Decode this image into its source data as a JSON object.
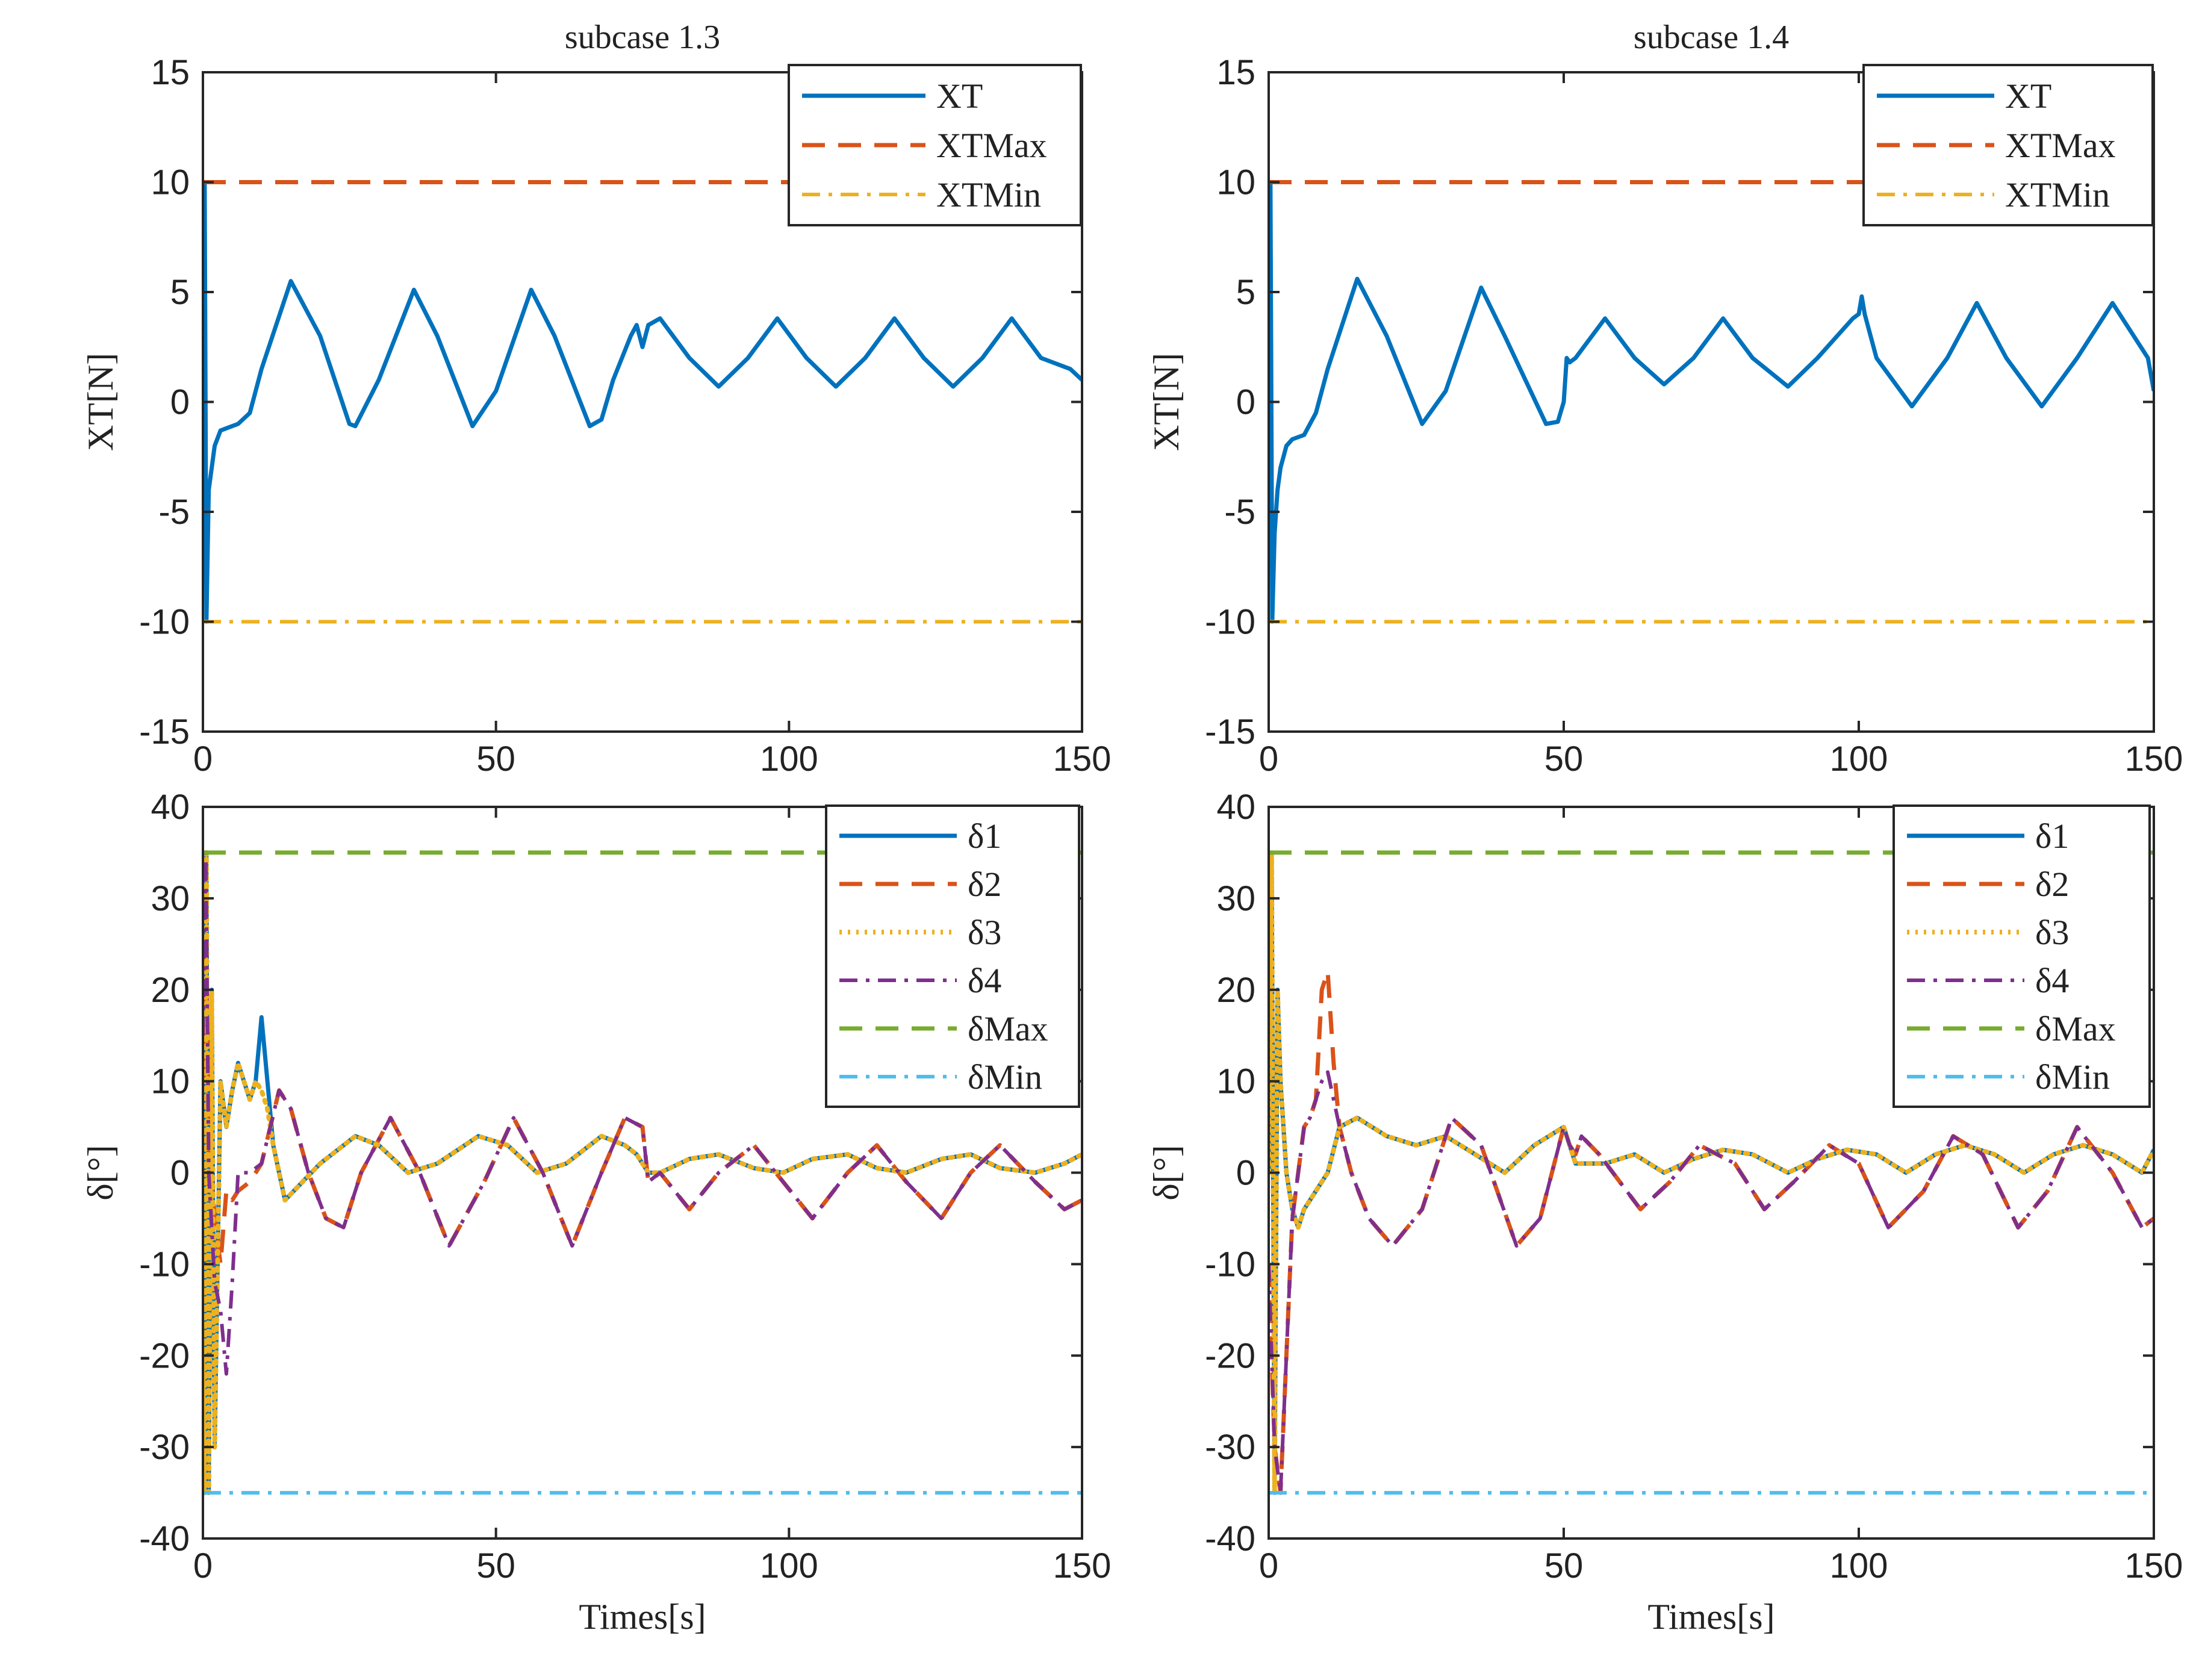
{
  "chart_data": [
    {
      "type": "line",
      "title": "subcase 1.3",
      "xlabel": "",
      "ylabel": "XT[N]",
      "xlim": [
        0,
        150
      ],
      "ylim": [
        -15,
        15
      ],
      "xticks": [
        "0",
        "50",
        "100",
        "150"
      ],
      "yticks": [
        "15",
        "10",
        "5",
        "0",
        "-5",
        "-10",
        "-15"
      ],
      "legend_position": "top-right",
      "series": [
        {
          "name": "XT",
          "color": "#0072BD",
          "dash": "solid",
          "x": [
            0,
            0.3,
            0.6,
            1,
            1.5,
            2,
            3,
            4,
            6,
            8,
            10,
            15,
            20,
            25,
            26,
            30,
            36,
            40,
            46,
            50,
            56,
            60,
            66,
            68,
            70,
            73,
            74,
            75,
            76,
            78,
            83,
            88,
            93,
            98,
            103,
            108,
            113,
            118,
            123,
            128,
            133,
            138,
            143,
            148,
            150
          ],
          "y": [
            0,
            10,
            -10,
            -4,
            -3,
            -2,
            -1.3,
            -1.2,
            -1,
            -0.5,
            1.5,
            5.5,
            3,
            -1,
            -1.1,
            1,
            5.1,
            3,
            -1.1,
            0.5,
            5.1,
            3,
            -1.1,
            -0.8,
            1,
            3,
            3.5,
            2.5,
            3.5,
            3.8,
            2,
            0.7,
            2,
            3.8,
            2,
            0.7,
            2,
            3.8,
            2,
            0.7,
            2,
            3.8,
            2,
            1.5,
            1
          ]
        },
        {
          "name": "XTMax",
          "color": "#D95319",
          "dash": "dashed",
          "x": [
            0,
            150
          ],
          "y": [
            10,
            10
          ]
        },
        {
          "name": "XTMin",
          "color": "#EDB120",
          "dash": "dashdot",
          "x": [
            0,
            150
          ],
          "y": [
            -10,
            -10
          ]
        }
      ]
    },
    {
      "type": "line",
      "title": "subcase 1.4",
      "xlabel": "",
      "ylabel": "XT[N]",
      "xlim": [
        0,
        150
      ],
      "ylim": [
        -15,
        15
      ],
      "xticks": [
        "0",
        "50",
        "100",
        "150"
      ],
      "yticks": [
        "15",
        "10",
        "5",
        "0",
        "-5",
        "-10",
        "-15"
      ],
      "legend_position": "top-right",
      "series": [
        {
          "name": "XT",
          "color": "#0072BD",
          "dash": "solid",
          "x": [
            0,
            0.3,
            0.6,
            1,
            1.5,
            2,
            3,
            4,
            6,
            8,
            10,
            15,
            20,
            26,
            30,
            36,
            40,
            47,
            49,
            50,
            50.5,
            51,
            52,
            57,
            62,
            67,
            72,
            77,
            82,
            88,
            93,
            99,
            100,
            100.5,
            101,
            103,
            109,
            115,
            120,
            125,
            131,
            137,
            143,
            149,
            150
          ],
          "y": [
            0,
            10,
            -10,
            -6,
            -4,
            -3,
            -2,
            -1.7,
            -1.5,
            -0.5,
            1.5,
            5.6,
            3,
            -1,
            0.5,
            5.2,
            3,
            -1,
            -0.9,
            0,
            2,
            1.8,
            2,
            3.8,
            2,
            0.8,
            2,
            3.8,
            2,
            0.7,
            2,
            3.8,
            4,
            4.8,
            4,
            2,
            -0.2,
            2,
            4.5,
            2,
            -0.2,
            2,
            4.5,
            2,
            0.5
          ]
        },
        {
          "name": "XTMax",
          "color": "#D95319",
          "dash": "dashed",
          "x": [
            0,
            150
          ],
          "y": [
            10,
            10
          ]
        },
        {
          "name": "XTMin",
          "color": "#EDB120",
          "dash": "dashdot",
          "x": [
            0,
            150
          ],
          "y": [
            -10,
            -10
          ]
        }
      ]
    },
    {
      "type": "line",
      "title": "",
      "xlabel": "Times[s]",
      "ylabel": "δ[°]",
      "xlim": [
        0,
        150
      ],
      "ylim": [
        -40,
        40
      ],
      "xticks": [
        "0",
        "50",
        "100",
        "150"
      ],
      "yticks": [
        "40",
        "30",
        "20",
        "10",
        "0",
        "-10",
        "-20",
        "-30",
        "-40"
      ],
      "legend_position": "top-right",
      "series": [
        {
          "name": "δ1",
          "color": "#0072BD",
          "dash": "solid",
          "x": [
            0,
            0.3,
            0.6,
            1,
            1.5,
            2,
            3,
            4,
            5,
            6,
            7,
            8,
            9,
            10,
            11,
            12,
            14,
            20,
            26,
            30,
            35,
            40,
            47,
            52,
            57,
            62,
            68,
            72,
            74,
            76,
            78,
            83,
            88,
            94,
            99,
            104,
            110,
            115,
            120,
            126,
            131,
            136,
            142,
            147,
            150
          ],
          "y": [
            -20,
            -35,
            35,
            -35,
            20,
            -30,
            10,
            5,
            9,
            12,
            10,
            8,
            10,
            17,
            10,
            3,
            -3,
            1,
            4,
            3,
            0,
            1,
            4,
            3,
            0,
            1,
            4,
            3,
            2,
            0,
            0,
            1.5,
            2,
            0.5,
            0,
            1.5,
            2,
            0.5,
            0,
            1.5,
            2,
            0.5,
            0,
            1,
            2
          ]
        },
        {
          "name": "δ2",
          "color": "#D95319",
          "dash": "dashed",
          "x": [
            0,
            0.5,
            1,
            2,
            3,
            4,
            5,
            6,
            8,
            10,
            13,
            15,
            18,
            21,
            24,
            27,
            32,
            37,
            42,
            48,
            53,
            58,
            63,
            68,
            72,
            75,
            76,
            78,
            83,
            88,
            94,
            99,
            104,
            110,
            115,
            120,
            126,
            131,
            136,
            142,
            147,
            150
          ],
          "y": [
            10,
            25,
            5,
            -5,
            -10,
            -2,
            -3,
            -2,
            -1,
            1,
            9,
            7,
            0,
            -5,
            -6,
            0,
            6,
            0,
            -8,
            -1,
            6,
            0,
            -8,
            0,
            6,
            5,
            -1,
            0,
            -4,
            0,
            3,
            -1,
            -5,
            0,
            3,
            -1,
            -5,
            0,
            3,
            -1,
            -4,
            -3
          ]
        },
        {
          "name": "δ3",
          "color": "#EDB120",
          "dash": "dotted",
          "x": [
            0,
            0.3,
            0.6,
            1,
            1.5,
            2,
            3,
            4,
            5,
            6,
            7,
            8,
            9,
            10,
            11,
            12,
            14,
            20,
            26,
            30,
            35,
            40,
            47,
            52,
            57,
            62,
            68,
            72,
            74,
            76,
            78,
            83,
            88,
            94,
            99,
            104,
            110,
            115,
            120,
            126,
            131,
            136,
            142,
            147,
            150
          ],
          "y": [
            -20,
            -35,
            35,
            -35,
            20,
            -30,
            10,
            5,
            9,
            12,
            10,
            8,
            10,
            9,
            7,
            3,
            -3,
            1,
            4,
            3,
            0,
            1,
            4,
            3,
            0,
            1,
            4,
            3,
            2,
            0,
            0,
            1.5,
            2,
            0.5,
            0,
            1.5,
            2,
            0.5,
            0,
            1.5,
            2,
            0.5,
            0,
            1,
            2
          ]
        },
        {
          "name": "δ4",
          "color": "#7E2F8E",
          "dash": "dashdot",
          "x": [
            0,
            0.5,
            1,
            2,
            3,
            4,
            5,
            6,
            8,
            10,
            13,
            15,
            18,
            21,
            24,
            27,
            32,
            37,
            42,
            48,
            53,
            58,
            63,
            68,
            72,
            75,
            76,
            78,
            83,
            88,
            94,
            99,
            104,
            110,
            115,
            120,
            126,
            131,
            136,
            142,
            147,
            150
          ],
          "y": [
            15,
            35,
            0,
            -12,
            -15,
            -22,
            -12,
            0,
            0,
            1,
            9,
            7,
            0,
            -5,
            -6,
            0,
            6,
            0,
            -8,
            -1,
            6,
            0,
            -8,
            0,
            6,
            5,
            -1,
            0,
            -4,
            0,
            3,
            -1,
            -5,
            0,
            3,
            -1,
            -5,
            0,
            3,
            -1,
            -4,
            -3
          ]
        },
        {
          "name": "δMax",
          "color": "#77AC30",
          "dash": "dashed",
          "x": [
            0,
            150
          ],
          "y": [
            35,
            35
          ]
        },
        {
          "name": "δMin",
          "color": "#4DBEEE",
          "dash": "dashdot",
          "x": [
            0,
            150
          ],
          "y": [
            -35,
            -35
          ]
        }
      ]
    },
    {
      "type": "line",
      "title": "",
      "xlabel": "Times[s]",
      "ylabel": "δ[°]",
      "xlim": [
        0,
        150
      ],
      "ylim": [
        -40,
        40
      ],
      "xticks": [
        "0",
        "50",
        "100",
        "150"
      ],
      "yticks": [
        "40",
        "30",
        "20",
        "10",
        "0",
        "-10",
        "-20",
        "-30",
        "-40"
      ],
      "legend_position": "top-right",
      "series": [
        {
          "name": "δ1",
          "color": "#0072BD",
          "dash": "solid",
          "x": [
            0,
            0.5,
            1,
            1.5,
            2,
            3,
            4,
            5,
            6,
            8,
            10,
            12,
            15,
            20,
            25,
            30,
            35,
            40,
            45,
            50,
            52,
            57,
            62,
            67,
            72,
            77,
            82,
            88,
            93,
            98,
            103,
            108,
            113,
            118,
            123,
            128,
            133,
            138,
            143,
            148,
            150
          ],
          "y": [
            0,
            35,
            -35,
            20,
            10,
            0,
            -4,
            -6,
            -4,
            -2,
            0,
            5,
            6,
            4,
            3,
            4,
            2,
            0,
            3,
            5,
            1,
            1,
            2,
            0,
            1.5,
            2.5,
            2,
            0,
            1.5,
            2.5,
            2,
            0,
            2,
            3,
            2,
            0,
            2,
            3,
            2,
            0,
            2.5
          ]
        },
        {
          "name": "δ2",
          "color": "#D95319",
          "dash": "dashed",
          "x": [
            0,
            1,
            2,
            3,
            4,
            5,
            6,
            7,
            8,
            9,
            10,
            11,
            12,
            14,
            17,
            21,
            26,
            31,
            36,
            42,
            46,
            48,
            50,
            51,
            52,
            53,
            56,
            63,
            68,
            73,
            79,
            84,
            89,
            95,
            100,
            105,
            111,
            116,
            121,
            127,
            132,
            137,
            143,
            148,
            150
          ],
          "y": [
            -10,
            -30,
            -35,
            -20,
            -5,
            0,
            5,
            6,
            8,
            20,
            22,
            12,
            5,
            0,
            -5,
            -8,
            -4,
            6,
            3,
            -8,
            -5,
            0,
            5,
            3,
            2,
            4,
            2,
            -4,
            -1,
            3,
            1,
            -4,
            -1,
            3,
            1,
            -6,
            -2,
            4,
            2,
            -6,
            -2,
            5,
            0,
            -6,
            -5
          ]
        },
        {
          "name": "δ3",
          "color": "#EDB120",
          "dash": "dotted",
          "x": [
            0,
            0.5,
            1,
            1.5,
            2,
            3,
            4,
            5,
            6,
            8,
            10,
            12,
            15,
            20,
            25,
            30,
            35,
            40,
            45,
            50,
            52,
            57,
            62,
            67,
            72,
            77,
            82,
            88,
            93,
            98,
            103,
            108,
            113,
            118,
            123,
            128,
            133,
            138,
            143,
            148,
            150
          ],
          "y": [
            0,
            35,
            -35,
            20,
            10,
            0,
            -4,
            -6,
            -4,
            -2,
            0,
            5,
            6,
            4,
            3,
            4,
            2,
            0,
            3,
            5,
            1,
            1,
            2,
            0,
            1.5,
            2.5,
            2,
            0,
            1.5,
            2.5,
            2,
            0,
            2,
            3,
            2,
            0,
            2,
            3,
            2,
            0,
            2.5
          ]
        },
        {
          "name": "δ4",
          "color": "#7E2F8E",
          "dash": "dashdot",
          "x": [
            0,
            1,
            2,
            3,
            4,
            5,
            6,
            7,
            8,
            9,
            10,
            11,
            12,
            14,
            17,
            21,
            26,
            31,
            36,
            42,
            46,
            48,
            50,
            51,
            52,
            53,
            56,
            63,
            68,
            73,
            79,
            84,
            89,
            95,
            100,
            105,
            111,
            116,
            121,
            127,
            132,
            137,
            143,
            148,
            150
          ],
          "y": [
            -10,
            -30,
            -35,
            -20,
            -5,
            0,
            5,
            6,
            8,
            10,
            11,
            8,
            5,
            0,
            -5,
            -8,
            -4,
            6,
            3,
            -8,
            -5,
            0,
            5,
            3,
            2,
            4,
            2,
            -4,
            -1,
            3,
            1,
            -4,
            -1,
            3,
            1,
            -6,
            -2,
            4,
            2,
            -6,
            -2,
            5,
            0,
            -6,
            -5
          ]
        },
        {
          "name": "δMax",
          "color": "#77AC30",
          "dash": "dashed",
          "x": [
            0,
            150
          ],
          "y": [
            35,
            35
          ]
        },
        {
          "name": "δMin",
          "color": "#4DBEEE",
          "dash": "dashdot",
          "x": [
            0,
            150
          ],
          "y": [
            -35,
            -35
          ]
        }
      ]
    }
  ]
}
